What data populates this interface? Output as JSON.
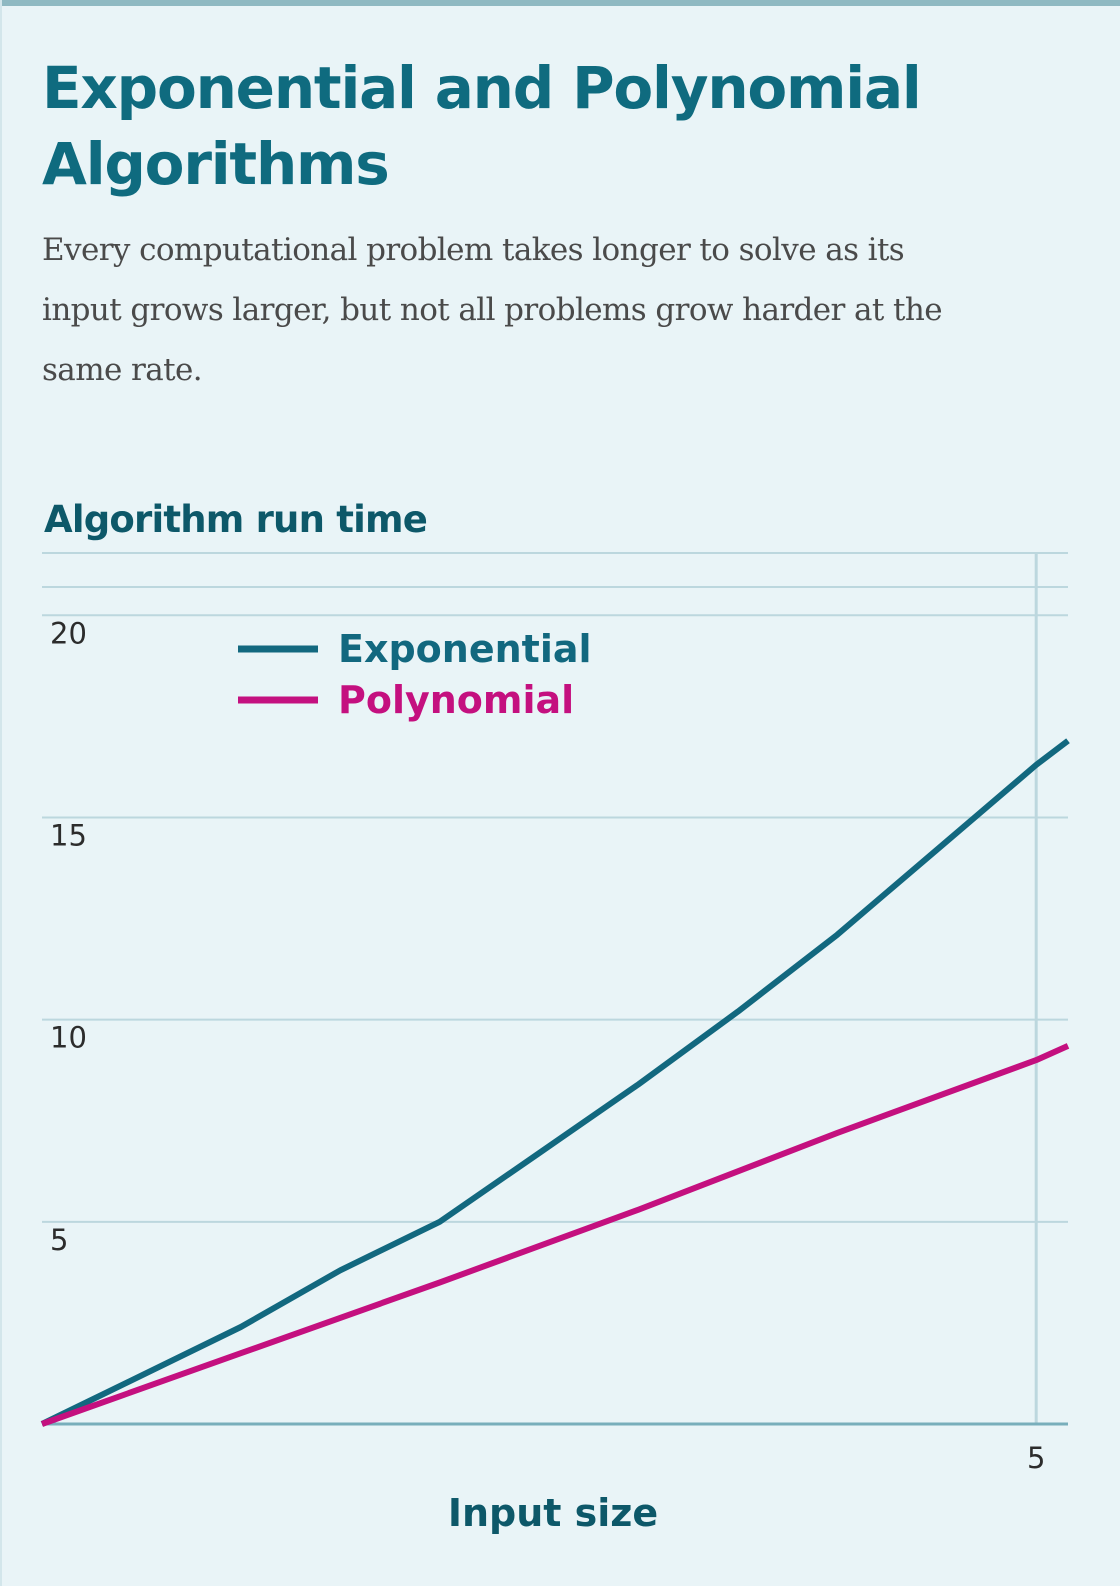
{
  "header": {
    "title": "Exponential and Polynomial Algorithms",
    "subtitle": "Every computational problem takes longer to solve as its input grows larger, but not all problems grow harder at the same rate."
  },
  "colors": {
    "background": "#e9f4f7",
    "exponential": "#12687f",
    "polynomial": "#c4107f",
    "title": "#0f6b7f",
    "gridline": "#bcd7de"
  },
  "chart_data": {
    "type": "line",
    "title": "Algorithm run time",
    "xlabel": "Input size",
    "ylabel": "",
    "xlim": [
      0,
      5.16
    ],
    "ylim": [
      0,
      20.7
    ],
    "xticks": [
      5
    ],
    "yticks": [
      5,
      10,
      15,
      20
    ],
    "xtick_labels": [
      "5"
    ],
    "ytick_labels": [
      "5",
      "10",
      "15",
      "20"
    ],
    "grid": true,
    "legend_position": "top-left",
    "series": [
      {
        "name": "Exponential",
        "x": [
          0,
          1,
          1.5,
          2,
          2.5,
          3,
          3.5,
          4,
          4.5,
          5,
          5.16
        ],
        "y": [
          0,
          2.4,
          3.8,
          5.0,
          6.7,
          8.4,
          10.2,
          12.1,
          14.2,
          16.3,
          16.9
        ]
      },
      {
        "name": "Polynomial",
        "x": [
          0,
          1,
          2,
          3,
          4,
          5,
          5.16
        ],
        "y": [
          0,
          1.75,
          3.5,
          5.3,
          7.2,
          9.0,
          9.35
        ]
      }
    ]
  }
}
